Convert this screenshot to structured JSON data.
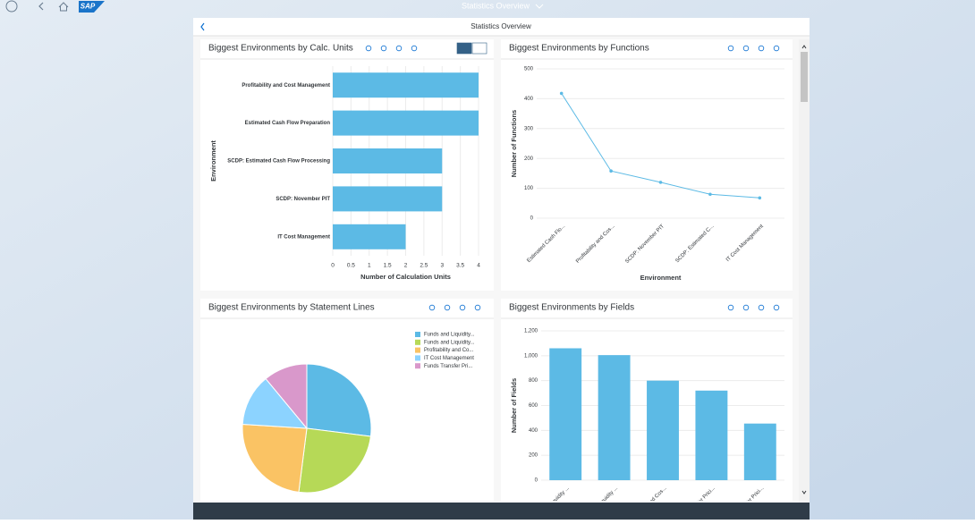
{
  "shell": {
    "logo": "SAP",
    "app_title": "Statistics Overview",
    "page_title": "Statistics Overview"
  },
  "chart_data": [
    {
      "type": "hbar",
      "title": "Biggest Environments by Calc. Units",
      "categories": [
        "Profitability and Cost Management",
        "Estimated Cash Flow Preparation",
        "SCDP: Estimated Cash Flow Processing",
        "SCDP: November PIT",
        "IT Cost Management"
      ],
      "values": [
        4,
        4,
        3,
        3,
        2
      ],
      "color": "#5cbae5",
      "xlim": [
        0,
        4
      ],
      "xticks": [
        0,
        0.5,
        1,
        1.5,
        2,
        2.5,
        3,
        3.5,
        4
      ],
      "x_label": "Number of Calculation Units",
      "y_label": "Environment",
      "grid": true
    },
    {
      "type": "line",
      "title": "Biggest Environments by Functions",
      "categories": [
        "Estimated Cash Flo...",
        "Profitability and Cos...",
        "SCDP: November PIT",
        "SCDP: Estimated C...",
        "IT Cost Management"
      ],
      "values": [
        418,
        158,
        120,
        80,
        68
      ],
      "color": "#5cbae5",
      "ylim": [
        0,
        500
      ],
      "yticks": [
        0,
        100,
        200,
        300,
        400,
        500
      ],
      "x_label": "Environment",
      "y_label": "Number of Functions",
      "grid": true
    },
    {
      "type": "pie",
      "title": "Biggest Environments by Statement Lines",
      "categories": [
        "Funds and Liquidity...",
        "Funds and Liquidity...",
        "Profitability and Co...",
        "IT Cost Management",
        "Funds Transfer Pri..."
      ],
      "values": [
        27,
        25,
        24,
        13,
        11
      ],
      "colors": [
        "#5cbae5",
        "#b6d957",
        "#fac364",
        "#8cd3ff",
        "#d998cb"
      ]
    },
    {
      "type": "bar",
      "title": "Biggest Environments by Fields",
      "categories": [
        "Funds and Liquidity ...",
        "Funds and Liquidity ...",
        "Profitability and Cos...",
        "Funds Transfer Prici...",
        "Funds Transfer Prici..."
      ],
      "values": [
        1060,
        1005,
        800,
        720,
        455
      ],
      "color": "#5cbae5",
      "ylim": [
        0,
        1200
      ],
      "yticks": [
        0,
        200,
        400,
        600,
        800,
        {
          "value": 1000,
          "label": "1,000"
        },
        {
          "value": 1200,
          "label": "1,200"
        }
      ],
      "y_label": "Number of Fields",
      "grid": true
    }
  ]
}
